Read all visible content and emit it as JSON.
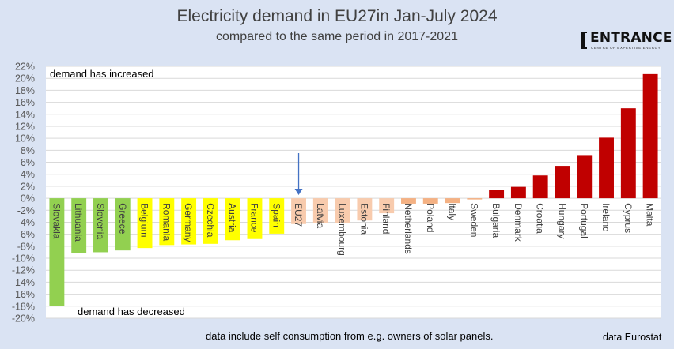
{
  "header": {
    "title": "Electricity demand in EU27in Jan-July 2024",
    "subtitle": "compared to the same period in 2017-2021"
  },
  "logo": {
    "name": "ENTRANCE",
    "tagline": "CENTRE OF EXPERTISE ENERGY"
  },
  "footer": {
    "note": "data include self consumption from e.g. owners of solar panels.",
    "source": "data Eurostat"
  },
  "colors": {
    "background": "#dae3f3",
    "plot_background": "#ffffff",
    "gridline": "#d9d9d9",
    "green": "#92d050",
    "yellow": "#ffff00",
    "peach": "#f8cbad",
    "salmon": "#f4b183",
    "red": "#c00000",
    "arrow": "#4472c4"
  },
  "chart_data": {
    "type": "bar",
    "title": "Electricity demand in EU27in Jan-July 2024",
    "subtitle": "compared to the same period in 2017-2021",
    "xlabel": "",
    "ylabel": "",
    "ylim": [
      -0.2,
      0.22
    ],
    "ytick_step": 0.02,
    "ytick_format": "percent",
    "grid": true,
    "legend": "none",
    "categories": [
      "Slovakia",
      "Lithuania",
      "Slovenia",
      "Greece",
      "Belgium",
      "Romania",
      "Germany",
      "Czechia",
      "Austria",
      "France",
      "Spain",
      "EU27",
      "Latvia",
      "Luxembourg",
      "Estonia",
      "Finland",
      "Netherlands",
      "Poland",
      "Italy",
      "Sweden",
      "Bulgaria",
      "Denmark",
      "Croatia",
      "Hungary",
      "Portugal",
      "Ireland",
      "Cyprus",
      "Malta"
    ],
    "values": [
      -0.179,
      -0.092,
      -0.09,
      -0.087,
      -0.083,
      -0.078,
      -0.077,
      -0.076,
      -0.07,
      -0.068,
      -0.059,
      -0.043,
      -0.041,
      -0.041,
      -0.037,
      -0.025,
      -0.009,
      -0.009,
      -0.008,
      -0.002,
      0.014,
      0.019,
      0.038,
      0.054,
      0.072,
      0.101,
      0.15,
      0.207
    ],
    "bar_colors": [
      "green",
      "green",
      "green",
      "green",
      "yellow",
      "yellow",
      "yellow",
      "yellow",
      "yellow",
      "yellow",
      "yellow",
      "peach",
      "peach",
      "peach",
      "peach",
      "peach",
      "salmon",
      "salmon",
      "salmon",
      "salmon",
      "red",
      "red",
      "red",
      "red",
      "red",
      "red",
      "red",
      "red"
    ],
    "annotations": [
      {
        "text": "demand has increased",
        "position": "top-left"
      },
      {
        "text": "demand has decreased",
        "position": "bottom-left"
      },
      {
        "type": "arrow",
        "target": "EU27",
        "direction": "down"
      }
    ]
  }
}
